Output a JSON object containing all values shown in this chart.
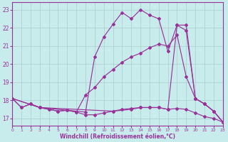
{
  "xlabel": "Windchill (Refroidissement éolien,°C)",
  "bg_color": "#c8ecec",
  "line_color": "#993399",
  "grid_color": "#aacccc",
  "xlim": [
    0,
    23
  ],
  "ylim": [
    16.6,
    23.4
  ],
  "yticks": [
    17,
    18,
    19,
    20,
    21,
    22,
    23
  ],
  "xticks": [
    0,
    1,
    2,
    3,
    4,
    5,
    6,
    7,
    8,
    9,
    10,
    11,
    12,
    13,
    14,
    15,
    16,
    17,
    18,
    19,
    20,
    21,
    22,
    23
  ],
  "line1_x": [
    0,
    1,
    2,
    3,
    4,
    5,
    6,
    7,
    8,
    9,
    10,
    11,
    12,
    13,
    14,
    15,
    16,
    17,
    18,
    19,
    20,
    21,
    22,
    23
  ],
  "line1_y": [
    18.1,
    17.6,
    17.8,
    17.6,
    17.5,
    17.4,
    17.45,
    17.35,
    17.2,
    17.2,
    17.3,
    17.4,
    17.5,
    17.55,
    17.6,
    17.6,
    17.6,
    17.5,
    17.55,
    17.5,
    17.3,
    17.1,
    17.0,
    16.8
  ],
  "line2_x": [
    0,
    1,
    2,
    3,
    4,
    5,
    6,
    7,
    8,
    9,
    10,
    11,
    12,
    13,
    14,
    15,
    16,
    17,
    18,
    19,
    20,
    21,
    22,
    23
  ],
  "line2_y": [
    18.1,
    17.6,
    17.8,
    17.6,
    17.5,
    17.4,
    17.45,
    17.35,
    18.3,
    18.7,
    19.3,
    19.7,
    20.1,
    20.4,
    20.6,
    20.9,
    21.1,
    21.0,
    21.6,
    19.3,
    18.1,
    17.8,
    17.4,
    16.8
  ],
  "line3_x": [
    0,
    3,
    8,
    9,
    10,
    11,
    12,
    13,
    14,
    15,
    16,
    17,
    18,
    19,
    20,
    21,
    22,
    23
  ],
  "line3_y": [
    18.1,
    17.6,
    17.35,
    20.4,
    21.5,
    22.2,
    22.85,
    22.5,
    23.0,
    22.7,
    22.5,
    20.7,
    22.15,
    21.85,
    18.1,
    17.8,
    17.4,
    16.8
  ],
  "line4_x": [
    0,
    3,
    11,
    13,
    14,
    15,
    16,
    17,
    18,
    19,
    20,
    21,
    22,
    23
  ],
  "line4_y": [
    18.1,
    17.6,
    17.4,
    17.5,
    17.6,
    17.6,
    17.6,
    17.5,
    22.15,
    22.15,
    18.1,
    17.8,
    17.4,
    16.8
  ]
}
